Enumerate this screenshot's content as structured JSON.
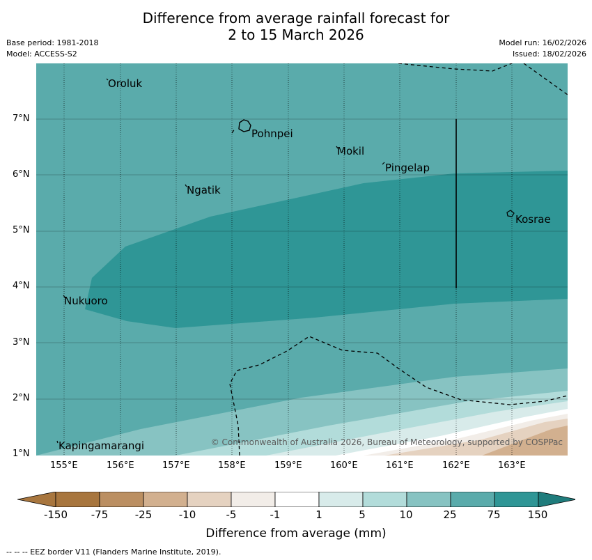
{
  "title": {
    "line1": "Difference from average rainfall forecast for",
    "line2": "2 to 15 March 2026"
  },
  "meta": {
    "base_period": "Base period: 1981-2018",
    "model": "Model: ACCESS-S2",
    "model_run": "Model run: 16/02/2026",
    "issued": "Issued: 18/02/2026"
  },
  "axes": {
    "lat_labels": [
      "7°N",
      "6°N",
      "5°N",
      "4°N",
      "3°N",
      "2°N",
      "1°N"
    ],
    "lon_labels": [
      "155°E",
      "156°E",
      "157°E",
      "158°E",
      "159°E",
      "160°E",
      "161°E",
      "162°E",
      "163°E"
    ]
  },
  "places": {
    "oroluk": "Oroluk",
    "pohnpei": "Pohnpei",
    "mokil": "Mokil",
    "pingelap": "Pingelap",
    "ngatik": "Ngatik",
    "kosrae": "Kosrae",
    "nukuoro": "Nukuoro",
    "kapingamarangi": "Kapingamarangi"
  },
  "copyright": "© Commonwealth of Australia 2026, Bureau of Meteorology, supported by COSPPac",
  "colorbar": {
    "labels": [
      "-150",
      "-75",
      "-25",
      "-10",
      "-5",
      "-1",
      "1",
      "5",
      "10",
      "25",
      "75",
      "150"
    ],
    "colors": [
      "#a8763e",
      "#bb8f62",
      "#d2b08f",
      "#e5d2c0",
      "#f2ede8",
      "#ffffff",
      "#d8ebea",
      "#b2dcda",
      "#87c3c2",
      "#5aabab",
      "#2f9696",
      "#1f7c7c"
    ],
    "xlabel": "Difference from average (mm)"
  },
  "footnote": "--  --  -- EEZ border V11 (Flanders Marine Institute, 2019)."
}
